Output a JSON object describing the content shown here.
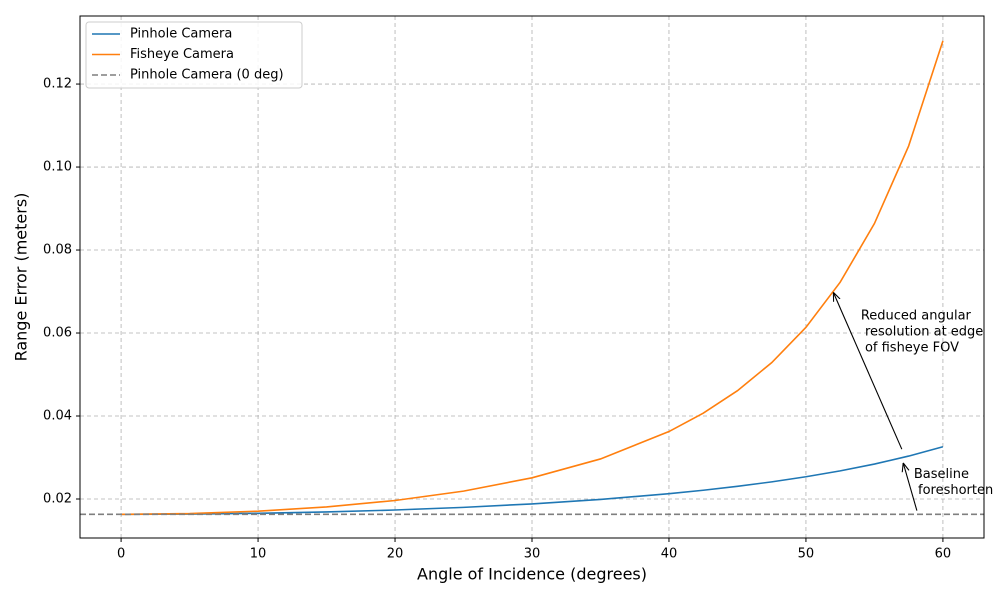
{
  "chart_data": {
    "type": "line",
    "x": [
      0,
      5,
      10,
      15,
      20,
      25,
      30,
      35,
      40,
      42.5,
      45,
      47.5,
      50,
      52.5,
      55,
      57.5,
      60
    ],
    "series": [
      {
        "name": "Pinhole Camera",
        "color": "#1f77b4",
        "values": [
          0.0163,
          0.01636,
          0.01655,
          0.01687,
          0.01735,
          0.01798,
          0.01882,
          0.0199,
          0.02128,
          0.02211,
          0.02305,
          0.02413,
          0.02536,
          0.02678,
          0.02842,
          0.03034,
          0.0326
        ]
      },
      {
        "name": "Fisheye Camera",
        "color": "#ff7f0e",
        "values": [
          0.0163,
          0.01649,
          0.01707,
          0.01809,
          0.01964,
          0.0219,
          0.0251,
          0.02965,
          0.03626,
          0.04067,
          0.0461,
          0.05286,
          0.06137,
          0.07225,
          0.08638,
          0.10509,
          0.1304
        ]
      }
    ],
    "hlines": [
      {
        "name": "Pinhole Camera (0 deg)",
        "y": 0.0163,
        "color": "#7f7f7f"
      }
    ],
    "xlabel": "Angle of Incidence (degrees)",
    "ylabel": "Range Error (meters)",
    "xlim": [
      -3,
      63
    ],
    "ylim": [
      0.0106,
      0.1364
    ],
    "xticks": [
      0,
      10,
      20,
      30,
      40,
      50,
      60
    ],
    "yticks": [
      0.02,
      0.04,
      0.06,
      0.08,
      {
        "value": 0.1,
        "label": "0.10"
      },
      0.12
    ],
    "grid": true,
    "legend": "upper left",
    "annotations": [
      {
        "text": [
          "Reduced angular",
          " resolution at edge",
          " of fisheye FOV"
        ],
        "xy": [
          52,
          0.0698
        ],
        "xytext": [
          57,
          0.032
        ]
      },
      {
        "text": [
          "Baseline",
          " foreshorten"
        ],
        "xy": [
          57.1,
          0.0287
        ],
        "xytext": [
          58.1,
          0.0172
        ]
      }
    ]
  }
}
